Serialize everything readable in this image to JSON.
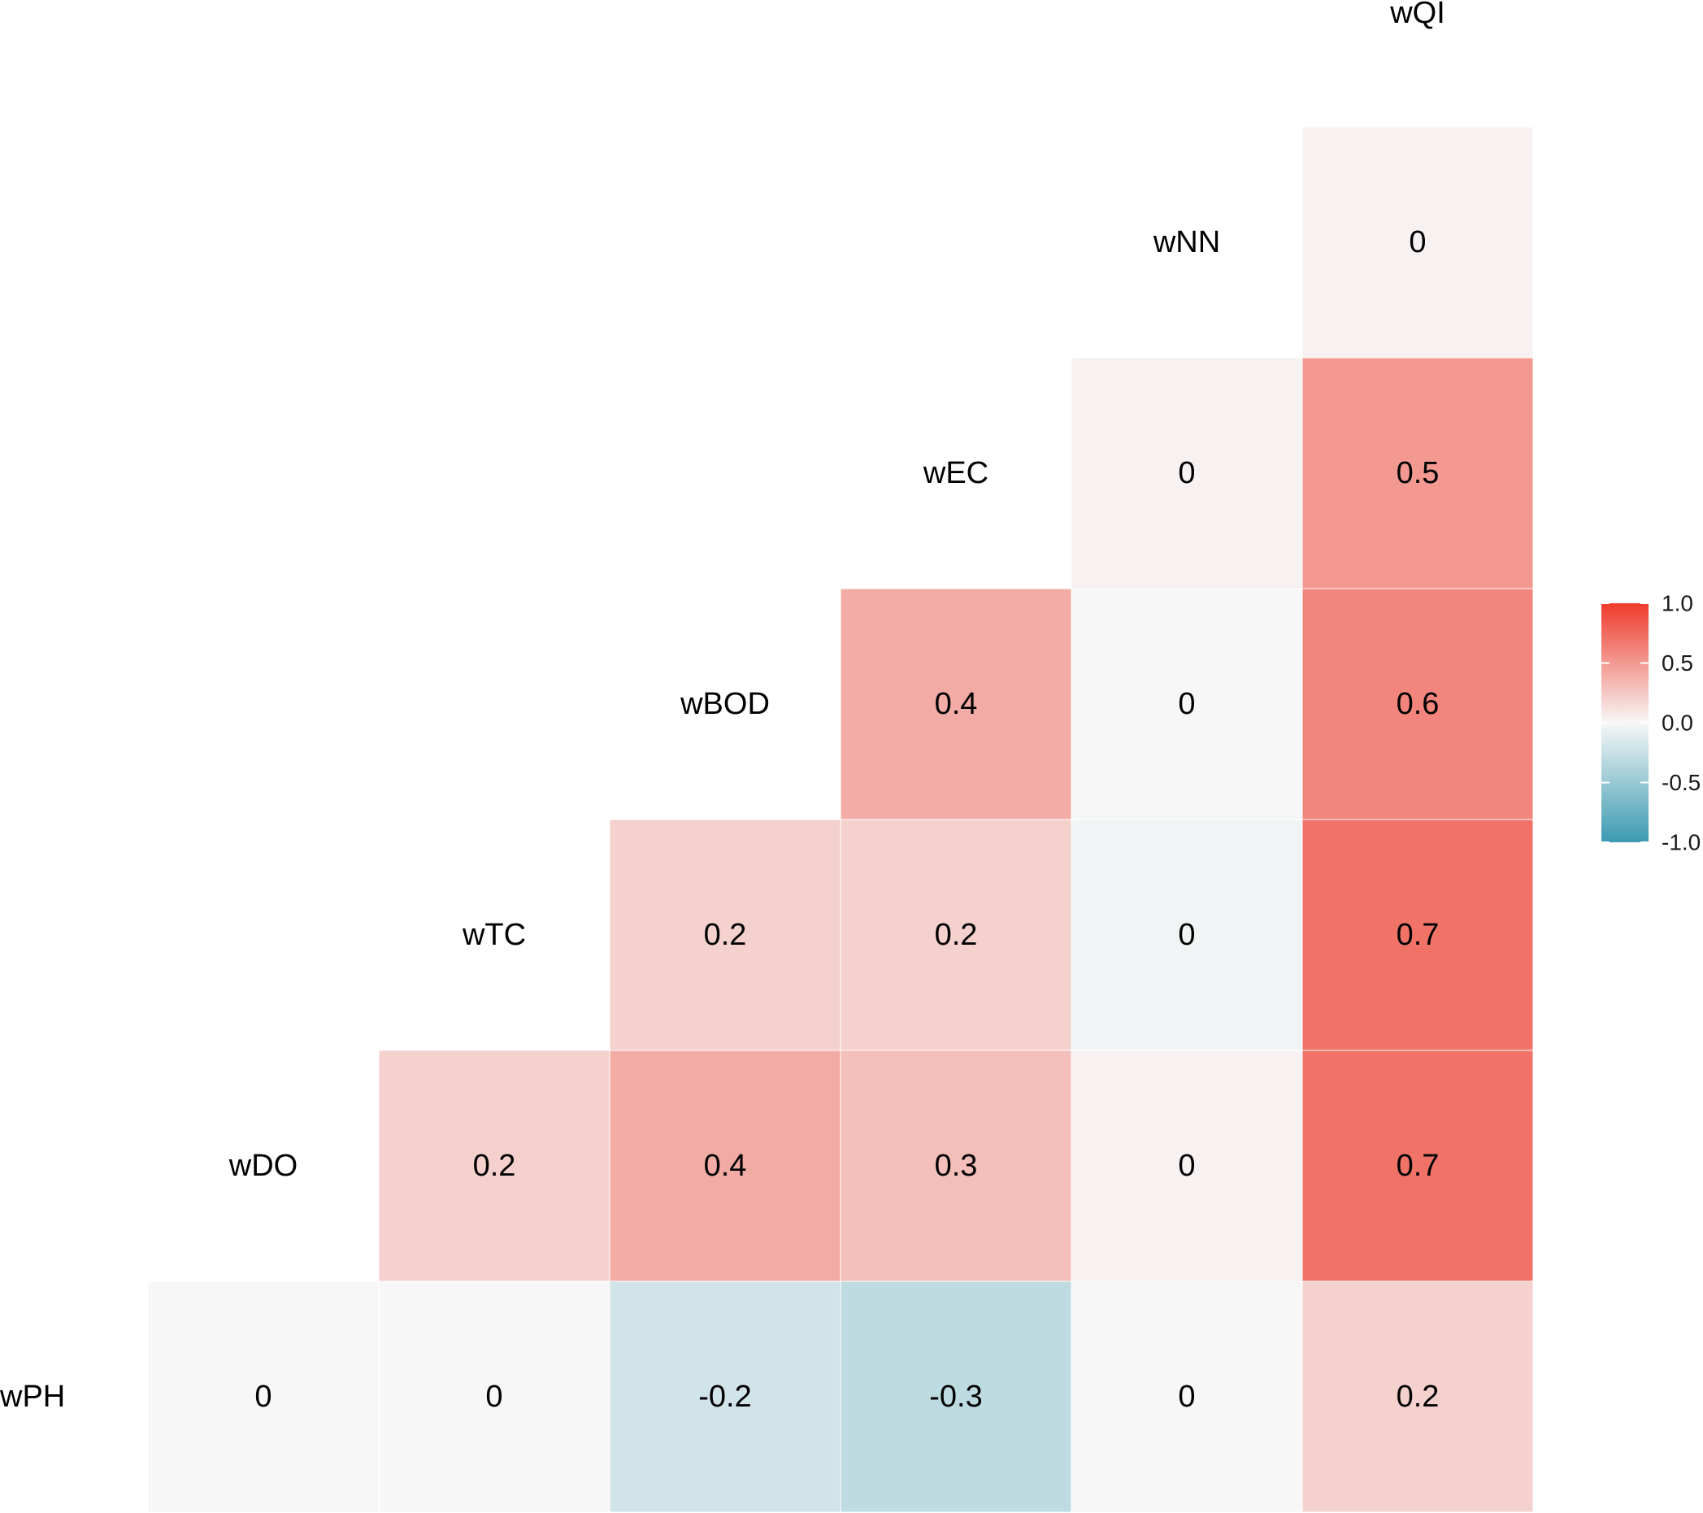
{
  "chart_data": {
    "type": "heatmap",
    "subtype": "lower-triangular correlation matrix",
    "variables": [
      "wPH",
      "wDO",
      "wTC",
      "wBOD",
      "wEC",
      "wNN",
      "wQI"
    ],
    "cells": [
      {
        "row": "wDO",
        "col": "wPH",
        "value": 0,
        "label": "0"
      },
      {
        "row": "wTC",
        "col": "wPH",
        "value": 0,
        "label": "0"
      },
      {
        "row": "wBOD",
        "col": "wPH",
        "value": -0.2,
        "label": "-0.2"
      },
      {
        "row": "wEC",
        "col": "wPH",
        "value": -0.3,
        "label": "-0.3"
      },
      {
        "row": "wNN",
        "col": "wPH",
        "value": 0,
        "label": "0"
      },
      {
        "row": "wQI",
        "col": "wPH",
        "value": 0.2,
        "label": "0.2"
      },
      {
        "row": "wTC",
        "col": "wDO",
        "value": 0.2,
        "label": "0.2"
      },
      {
        "row": "wBOD",
        "col": "wDO",
        "value": 0.4,
        "label": "0.4"
      },
      {
        "row": "wEC",
        "col": "wDO",
        "value": 0.3,
        "label": "0.3"
      },
      {
        "row": "wNN",
        "col": "wDO",
        "value": 0.03,
        "label": "0"
      },
      {
        "row": "wQI",
        "col": "wDO",
        "value": 0.7,
        "label": "0.7"
      },
      {
        "row": "wBOD",
        "col": "wTC",
        "value": 0.2,
        "label": "0.2"
      },
      {
        "row": "wEC",
        "col": "wTC",
        "value": 0.2,
        "label": "0.2"
      },
      {
        "row": "wNN",
        "col": "wTC",
        "value": -0.03,
        "label": "0"
      },
      {
        "row": "wQI",
        "col": "wTC",
        "value": 0.7,
        "label": "0.7"
      },
      {
        "row": "wEC",
        "col": "wBOD",
        "value": 0.4,
        "label": "0.4"
      },
      {
        "row": "wNN",
        "col": "wBOD",
        "value": 0,
        "label": "0"
      },
      {
        "row": "wQI",
        "col": "wBOD",
        "value": 0.6,
        "label": "0.6"
      },
      {
        "row": "wNN",
        "col": "wEC",
        "value": 0.03,
        "label": "0"
      },
      {
        "row": "wQI",
        "col": "wEC",
        "value": 0.5,
        "label": "0.5"
      },
      {
        "row": "wQI",
        "col": "wNN",
        "value": 0.03,
        "label": "0"
      }
    ],
    "color_scale": {
      "low": "#3a9ab2",
      "mid": "#f7f7f7",
      "high": "#ee3b2b",
      "limits": [
        -1,
        1
      ],
      "breaks": [
        1.0,
        0.5,
        0.0,
        -0.5,
        -1.0
      ],
      "break_labels": [
        "1.0",
        "0.5",
        "0.0",
        "-0.5",
        "-1.0"
      ]
    },
    "title": "",
    "xlabel": "",
    "ylabel": "",
    "legend_position": "right",
    "grid": false
  }
}
